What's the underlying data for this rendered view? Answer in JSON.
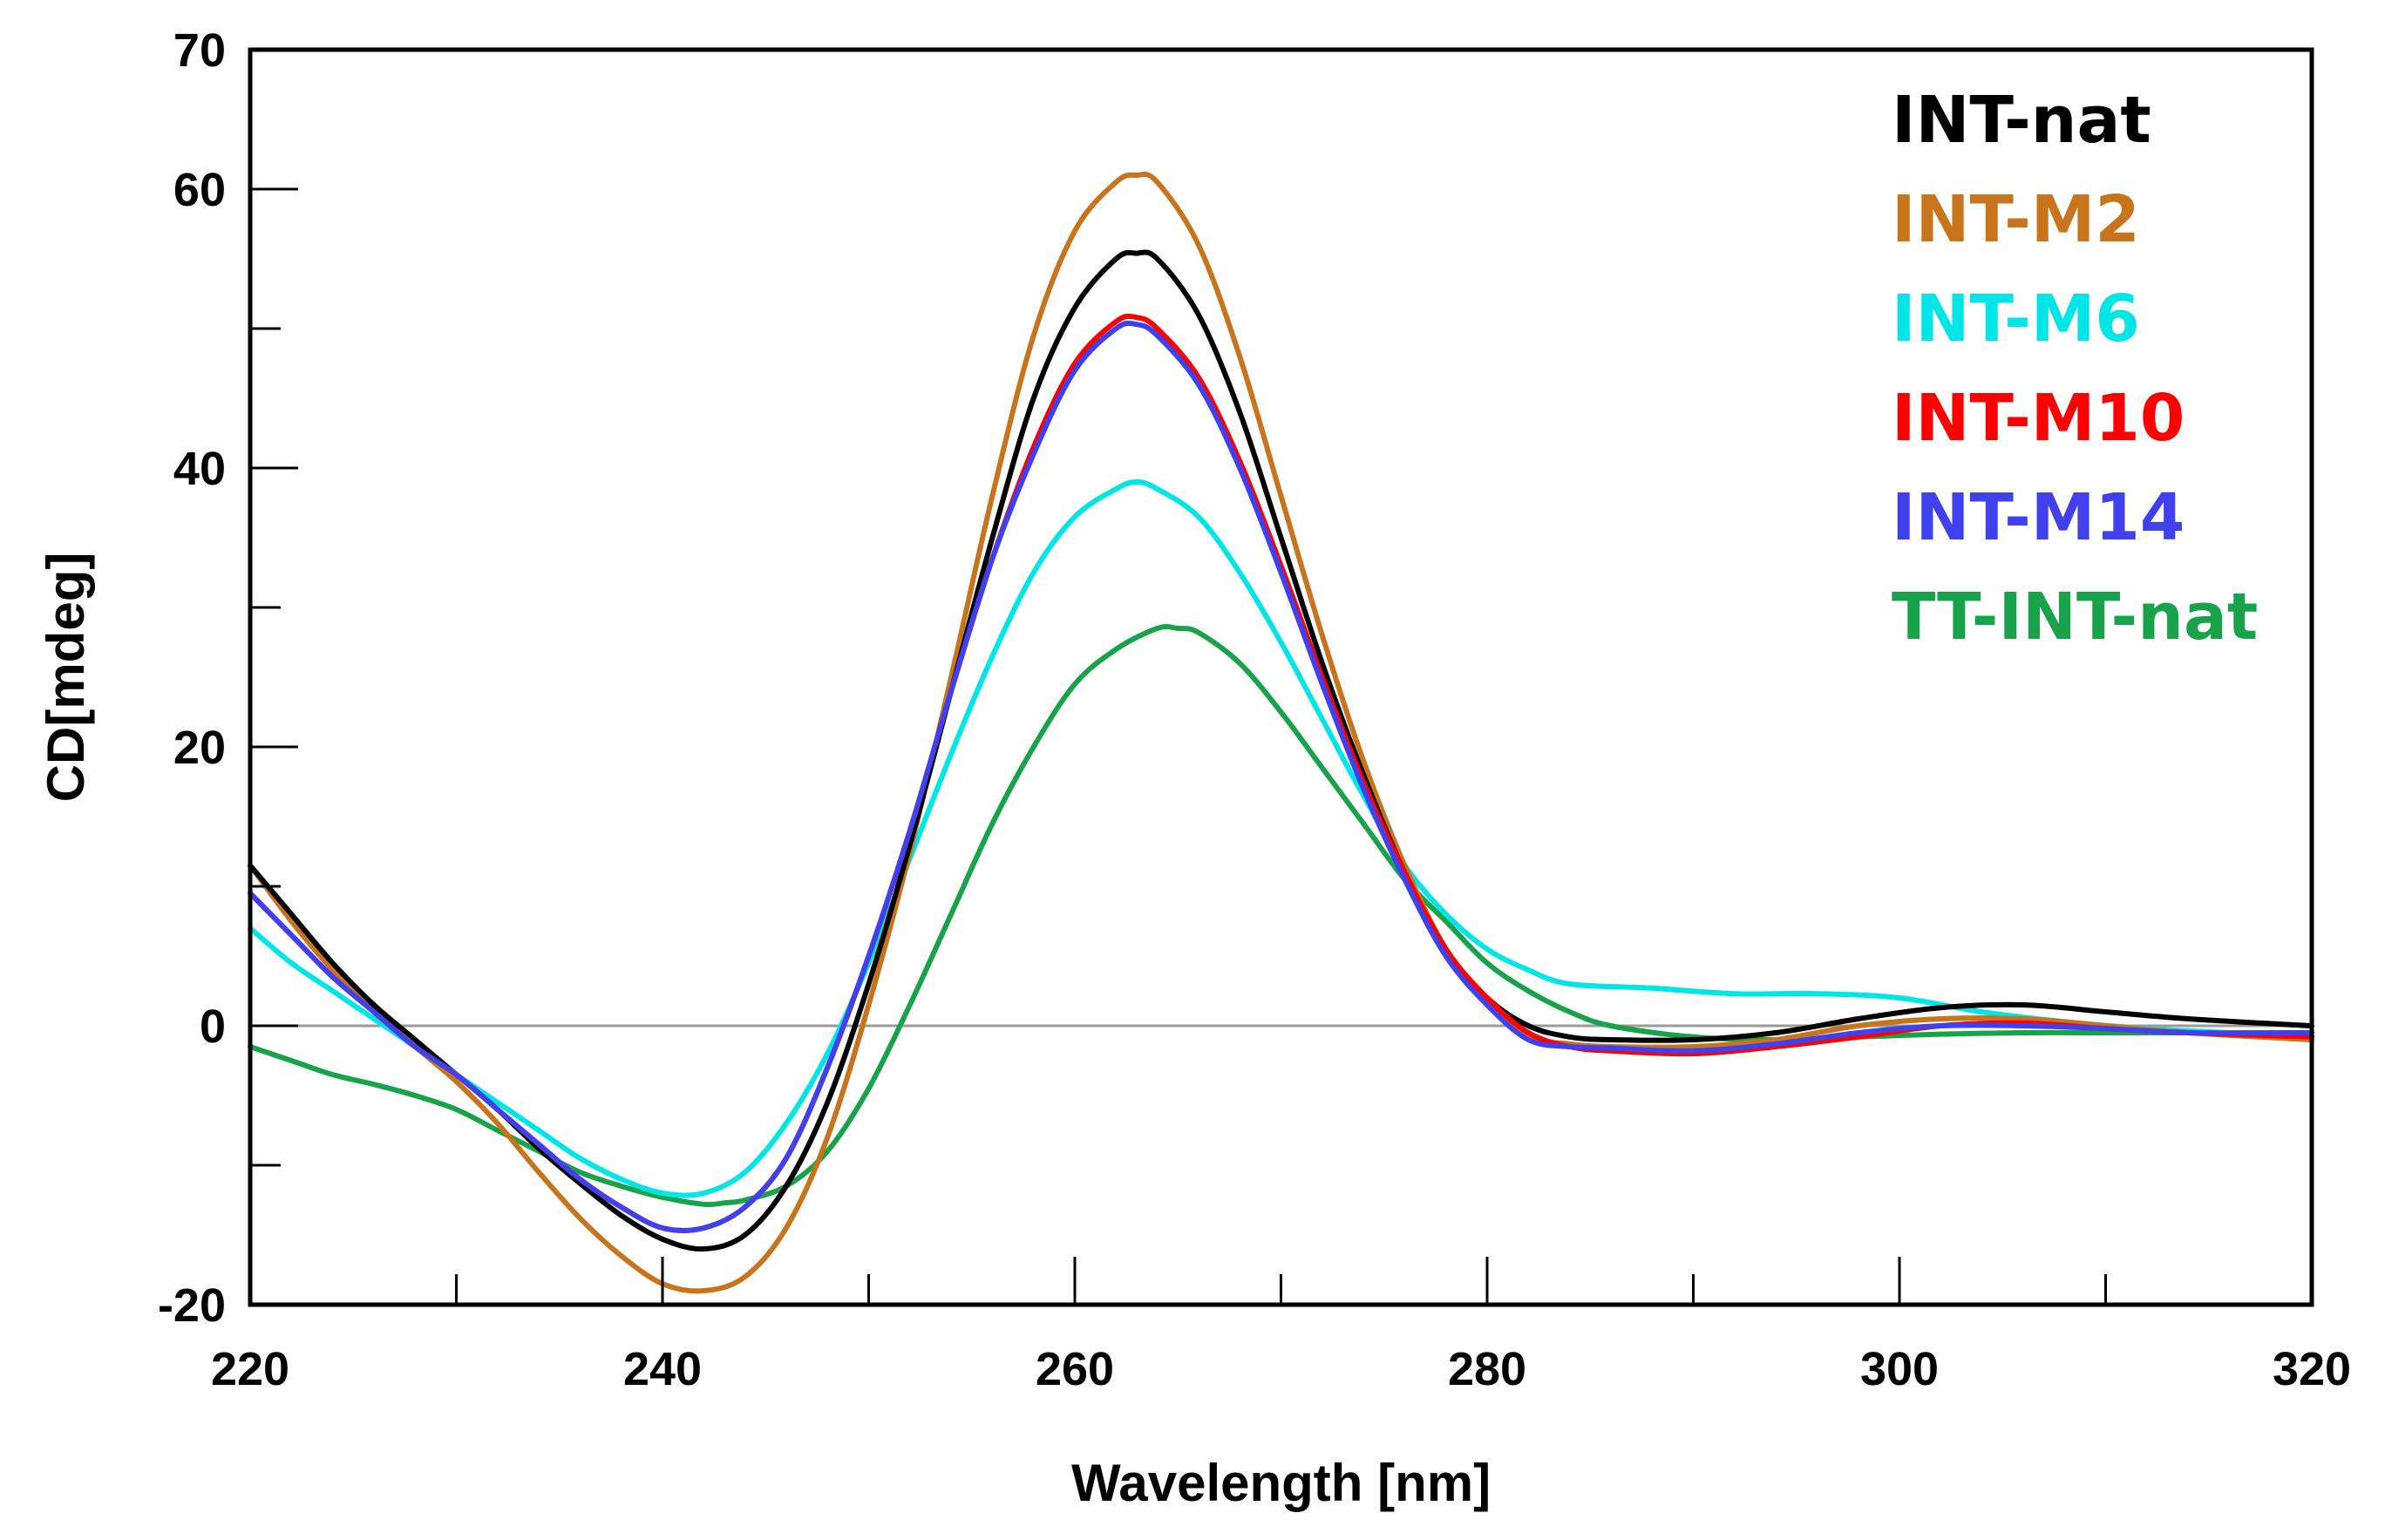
{
  "chart_data": {
    "type": "line",
    "title": "",
    "xlabel": "Wavelength [nm]",
    "ylabel": "CD[mdeg]",
    "xlim": [
      220,
      320
    ],
    "ylim": [
      -20,
      70
    ],
    "grid": false,
    "legend_position": "top-right",
    "x_ticks": [
      220,
      240,
      260,
      280,
      300,
      320
    ],
    "x_tick_labels": [
      "220",
      "240",
      "260",
      "280",
      "300",
      "320"
    ],
    "x_minor_ticks": [
      230,
      250,
      270,
      290,
      310
    ],
    "y_ticks": [
      -20,
      0,
      20,
      40,
      60,
      70
    ],
    "y_tick_labels": [
      "-20",
      "0",
      "20",
      "40",
      "60",
      "70"
    ],
    "y_minor_ticks": [
      -10,
      10,
      30,
      50
    ],
    "zero_line": true,
    "series": [
      {
        "name": "INT-nat",
        "color": "#000000",
        "x": [
          220,
          222,
          224,
          226,
          228,
          230,
          232,
          234,
          236,
          238,
          240,
          242,
          244,
          246,
          248,
          250,
          252,
          254,
          256,
          258,
          260,
          262,
          263,
          264,
          266,
          268,
          270,
          272,
          274,
          276,
          278,
          280,
          282,
          284,
          286,
          290,
          294,
          298,
          302,
          306,
          310,
          314,
          320
        ],
        "y": [
          11.5,
          8,
          4.5,
          1.5,
          -1,
          -3.5,
          -6,
          -8.8,
          -11.3,
          -13.6,
          -15.3,
          -16,
          -15,
          -11.5,
          -5.5,
          3,
          13,
          24,
          35,
          45,
          51.5,
          55,
          55.4,
          55,
          51,
          44,
          35,
          26,
          18,
          11,
          5.5,
          2,
          0,
          -0.8,
          -1,
          -1,
          -0.5,
          0.5,
          1.3,
          1.5,
          1,
          0.5,
          0
        ]
      },
      {
        "name": "INT-M2",
        "color": "#c8741c",
        "x": [
          220,
          222,
          224,
          226,
          228,
          230,
          232,
          234,
          236,
          238,
          240,
          242,
          244,
          246,
          248,
          250,
          252,
          254,
          256,
          258,
          260,
          262,
          263,
          264,
          266,
          268,
          270,
          272,
          274,
          276,
          278,
          280,
          282,
          284,
          286,
          290,
          294,
          298,
          302,
          306,
          310,
          314,
          320
        ],
        "y": [
          11.5,
          7.5,
          4,
          1,
          -1.5,
          -4,
          -7,
          -10.5,
          -13.8,
          -16.5,
          -18.5,
          -19,
          -18,
          -14.5,
          -8,
          1.5,
          12.5,
          25,
          38,
          49.5,
          57,
          60.5,
          61,
          60.5,
          56,
          48,
          38,
          28,
          19,
          11.5,
          5.5,
          1.5,
          -0.8,
          -1.3,
          -1.5,
          -1.5,
          -1,
          0,
          0.5,
          0.5,
          0,
          -0.5,
          -1
        ]
      },
      {
        "name": "INT-M6",
        "color": "#00e5e5",
        "x": [
          220,
          222,
          224,
          226,
          228,
          230,
          232,
          234,
          236,
          238,
          240,
          242,
          244,
          246,
          248,
          250,
          252,
          254,
          256,
          258,
          260,
          262,
          263,
          264,
          266,
          268,
          270,
          272,
          274,
          276,
          278,
          280,
          282,
          284,
          288,
          292,
          296,
          300,
          304,
          308,
          312,
          316,
          320
        ],
        "y": [
          7,
          4.5,
          2.5,
          0.5,
          -1.5,
          -3.5,
          -5.5,
          -7.5,
          -9.5,
          -11,
          -12,
          -12,
          -10.5,
          -7,
          -2,
          4.5,
          12,
          19.5,
          26.5,
          32.5,
          36.5,
          38.5,
          39,
          38.5,
          36.5,
          32.5,
          27.5,
          22,
          16.5,
          11.5,
          8,
          5.5,
          4,
          3,
          2.7,
          2.3,
          2.3,
          2,
          1,
          0.3,
          -0.2,
          -0.5,
          -0.8
        ]
      },
      {
        "name": "INT-M10",
        "color": "#ff0000",
        "x": [
          220,
          222,
          224,
          226,
          228,
          230,
          232,
          234,
          236,
          238,
          240,
          242,
          244,
          246,
          248,
          250,
          252,
          254,
          256,
          258,
          260,
          262,
          263,
          264,
          266,
          268,
          270,
          272,
          274,
          276,
          278,
          280,
          282,
          284,
          286,
          290,
          294,
          298,
          302,
          306,
          310,
          314,
          320
        ],
        "y": [
          9.5,
          6.5,
          3.5,
          1,
          -1.5,
          -3.5,
          -6,
          -8.5,
          -11,
          -13,
          -14.5,
          -14.5,
          -13,
          -9.5,
          -3,
          5,
          14,
          24,
          33.5,
          41.5,
          47.5,
          50.5,
          50.8,
          50,
          46.5,
          40.5,
          33,
          25,
          17.5,
          11,
          5.5,
          2,
          -0.5,
          -1.5,
          -1.8,
          -2,
          -1.5,
          -0.8,
          0,
          0.2,
          -0.2,
          -0.5,
          -0.8
        ]
      },
      {
        "name": "INT-M14",
        "color": "#4040ee",
        "x": [
          220,
          222,
          224,
          226,
          228,
          230,
          232,
          234,
          236,
          238,
          240,
          242,
          244,
          246,
          248,
          250,
          252,
          254,
          256,
          258,
          260,
          262,
          263,
          264,
          266,
          268,
          270,
          272,
          274,
          276,
          278,
          280,
          282,
          284,
          286,
          290,
          294,
          298,
          302,
          306,
          310,
          314,
          320
        ],
        "y": [
          9.5,
          6.5,
          3.5,
          1,
          -1.5,
          -3.5,
          -6,
          -8.5,
          -11,
          -13,
          -14.5,
          -14.5,
          -13,
          -9.5,
          -3,
          5,
          14,
          24,
          33.5,
          41,
          47,
          50,
          50.3,
          49.5,
          46,
          40,
          32.5,
          24.5,
          17,
          10.5,
          5,
          1.5,
          -1,
          -1.5,
          -1.6,
          -1.8,
          -1.3,
          -0.5,
          0,
          0,
          -0.2,
          -0.5,
          -0.5
        ]
      },
      {
        "name": "TT-INT-nat",
        "color": "#18a34a",
        "x": [
          220,
          222,
          224,
          226,
          228,
          230,
          232,
          234,
          236,
          238,
          240,
          242,
          243,
          244,
          246,
          248,
          250,
          252,
          254,
          256,
          258,
          260,
          262,
          264,
          265,
          266,
          268,
          270,
          272,
          274,
          276,
          278,
          280,
          282,
          284,
          286,
          290,
          294,
          298,
          302,
          306,
          310,
          320
        ],
        "y": [
          -1.5,
          -2.5,
          -3.5,
          -4.2,
          -5,
          -6,
          -7.5,
          -9,
          -10.5,
          -11.5,
          -12.3,
          -12.8,
          -12.7,
          -12.5,
          -11.5,
          -9,
          -4.5,
          1.5,
          8,
          14.5,
          20,
          24.5,
          27,
          28.5,
          28.5,
          28.2,
          26,
          22.5,
          18.5,
          14.5,
          10.5,
          7.5,
          4.5,
          2.5,
          1,
          0,
          -0.8,
          -1,
          -0.8,
          -0.6,
          -0.5,
          -0.5,
          -0.5
        ]
      }
    ]
  }
}
